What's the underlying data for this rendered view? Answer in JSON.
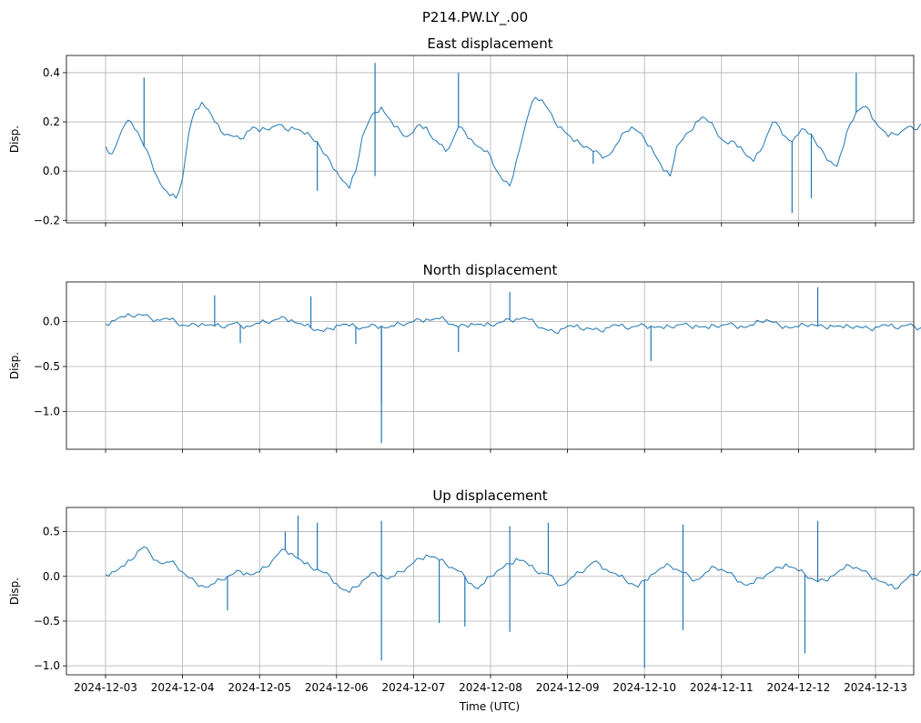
{
  "suptitle": "P214.PW.LY_.00",
  "xlabel": "Time (UTC)",
  "colors": {
    "line": "#1f77b4",
    "grid": "#b0b0b0",
    "axes": "#000000"
  },
  "chart_data": [
    {
      "type": "line",
      "title": "East displacement",
      "ylabel": "Disp.",
      "x_ticks": [
        "2024-12-03",
        "2024-12-04",
        "2024-12-05",
        "2024-12-06",
        "2024-12-07",
        "2024-12-08",
        "2024-12-09",
        "2024-12-10",
        "2024-12-11",
        "2024-12-12",
        "2024-12-13"
      ],
      "show_x_ticklabels": false,
      "x_range": [
        "2024-12-03T00:00",
        "2024-12-13T00:00"
      ],
      "ylim": [
        -0.21,
        0.47
      ],
      "y_ticks": [
        -0.2,
        0.0,
        0.2,
        0.4
      ],
      "y_ticklabels": [
        "−0.2",
        "0.0",
        "0.2",
        "0.4"
      ],
      "grid": true,
      "series": [
        {
          "x_start": "2024-12-03T00:00",
          "x_step_hours": 2,
          "values": [
            0.1,
            0.07,
            0.13,
            0.19,
            0.2,
            0.16,
            0.1,
            0.05,
            -0.02,
            -0.07,
            -0.1,
            -0.11,
            -0.03,
            0.16,
            0.25,
            0.28,
            0.25,
            0.2,
            0.16,
            0.15,
            0.14,
            0.13,
            0.16,
            0.18,
            0.16,
            0.17,
            0.18,
            0.19,
            0.17,
            0.18,
            0.17,
            0.15,
            0.14,
            0.12,
            0.07,
            0.04,
            0.0,
            -0.04,
            -0.07,
            0.0,
            0.14,
            0.2,
            0.24,
            0.26,
            0.22,
            0.18,
            0.16,
            0.14,
            0.16,
            0.19,
            0.18,
            0.13,
            0.11,
            0.08,
            0.12,
            0.18,
            0.16,
            0.13,
            0.1,
            0.08,
            0.06,
            0.0,
            -0.04,
            -0.06,
            0.04,
            0.14,
            0.24,
            0.3,
            0.29,
            0.25,
            0.2,
            0.18,
            0.15,
            0.12,
            0.11,
            0.1,
            0.08,
            0.07,
            0.06,
            0.08,
            0.12,
            0.16,
            0.18,
            0.16,
            0.13,
            0.1,
            0.05,
            0.0,
            -0.02,
            0.1,
            0.13,
            0.16,
            0.2,
            0.22,
            0.2,
            0.17,
            0.13,
            0.11,
            0.12,
            0.1,
            0.06,
            0.04,
            0.08,
            0.14,
            0.2,
            0.18,
            0.14,
            0.12,
            0.15,
            0.17,
            0.15,
            0.1,
            0.07,
            0.04,
            0.02,
            0.1,
            0.19,
            0.24,
            0.26,
            0.25,
            0.2,
            0.17,
            0.14,
            0.15,
            0.16,
            0.18,
            0.17,
            0.19,
            0.2,
            0.16,
            0.13,
            0.16,
            0.17,
            0.14,
            0.13,
            0.15,
            0.19,
            0.2,
            0.17,
            0.15,
            0.14,
            0.16,
            0.18,
            0.22,
            0.2,
            0.16,
            0.13,
            0.12,
            0.14,
            0.16,
            0.18,
            0.21,
            0.2,
            0.16,
            0.13,
            0.12,
            0.15,
            0.18,
            0.16,
            0.12,
            0.1,
            0.12,
            0.18,
            0.22,
            0.2,
            0.17,
            0.15,
            0.14,
            0.16,
            0.18,
            0.16,
            0.14,
            0.13,
            0.16,
            0.2,
            0.22,
            0.19,
            0.16,
            0.13,
            0.12,
            0.14,
            0.16,
            0.2,
            0.22,
            0.19,
            0.16,
            0.13,
            0.15,
            0.17,
            0.15,
            0.12,
            0.1,
            0.12,
            0.14,
            0.18,
            0.21,
            0.2,
            0.17,
            0.15,
            0.16,
            0.18,
            0.2,
            0.22,
            0.18,
            0.15,
            0.13,
            0.11,
            0.1,
            0.06,
            0.04,
            0.1,
            0.16,
            0.2,
            0.18,
            0.16,
            0.14,
            0.16,
            0.2,
            0.21,
            0.17,
            0.14,
            0.13,
            0.16,
            0.19,
            0.17,
            0.14,
            0.11,
            0.08,
            0.1,
            0.17,
            0.22,
            0.19,
            0.16,
            0.14,
            0.12,
            0.1,
            0.09,
            0.14,
            0.19,
            0.17,
            0.14,
            0.1,
            0.08,
            0.05,
            0.02,
            0.01,
            0.06,
            0.16,
            0.28,
            0.33,
            0.34,
            0.28,
            0.22,
            0.17,
            0.14,
            0.15,
            0.18,
            0.19,
            0.17,
            0.14,
            0.13,
            0.16,
            0.18,
            0.17
          ]
        }
      ],
      "spikes": [
        {
          "x": "2024-12-03T12:00",
          "value": 0.38
        },
        {
          "x": "2024-12-05T18:00",
          "value": -0.08
        },
        {
          "x": "2024-12-06T12:00",
          "value": 0.44
        },
        {
          "x": "2024-12-06T12:00",
          "value": -0.02
        },
        {
          "x": "2024-12-07T14:00",
          "value": 0.4
        },
        {
          "x": "2024-12-09T08:00",
          "value": 0.03
        },
        {
          "x": "2024-12-11T22:00",
          "value": -0.17
        },
        {
          "x": "2024-12-12T04:00",
          "value": -0.11
        },
        {
          "x": "2024-12-12T18:00",
          "value": 0.4
        }
      ]
    },
    {
      "type": "line",
      "title": "North displacement",
      "ylabel": "Disp.",
      "x_ticks": [
        "2024-12-03",
        "2024-12-04",
        "2024-12-05",
        "2024-12-06",
        "2024-12-07",
        "2024-12-08",
        "2024-12-09",
        "2024-12-10",
        "2024-12-11",
        "2024-12-12",
        "2024-12-13"
      ],
      "show_x_ticklabels": false,
      "x_range": [
        "2024-12-03T00:00",
        "2024-12-13T00:00"
      ],
      "ylim": [
        -1.42,
        0.44
      ],
      "y_ticks": [
        -1.0,
        -0.5,
        0.0
      ],
      "y_ticklabels": [
        "−1.0",
        "−0.5",
        "0.0"
      ],
      "grid": true,
      "series": [
        {
          "x_start": "2024-12-03T00:00",
          "x_step_hours": 2,
          "values": [
            -0.03,
            0.01,
            0.04,
            0.05,
            0.06,
            0.08,
            0.07,
            0.04,
            0.02,
            0.03,
            0.02,
            -0.01,
            -0.04,
            -0.05,
            -0.03,
            -0.02,
            -0.04,
            -0.05,
            -0.06,
            -0.04,
            -0.02,
            -0.04,
            -0.05,
            -0.04,
            -0.02,
            -0.01,
            0.01,
            0.03,
            0.04,
            0.02,
            -0.02,
            -0.05,
            -0.07,
            -0.09,
            -0.11,
            -0.08,
            -0.04,
            -0.03,
            -0.05,
            -0.06,
            -0.07,
            -0.06,
            -0.04,
            -0.05,
            -0.07,
            -0.05,
            -0.03,
            -0.02,
            0.0,
            0.02,
            0.03,
            0.02,
            0.03,
            0.01,
            -0.03,
            -0.06,
            -0.04,
            -0.02,
            -0.03,
            -0.05,
            -0.04,
            -0.02,
            0.0,
            0.02,
            0.03,
            0.04,
            0.02,
            -0.03,
            -0.07,
            -0.1,
            -0.12,
            -0.08,
            -0.05,
            -0.06,
            -0.08,
            -0.07,
            -0.09,
            -0.1,
            -0.07,
            -0.04,
            -0.05,
            -0.07,
            -0.06,
            -0.05,
            -0.04,
            -0.05,
            -0.06,
            -0.08,
            -0.06,
            -0.04,
            -0.03,
            -0.05,
            -0.04,
            -0.06,
            -0.08,
            -0.05,
            -0.04,
            -0.03,
            -0.04,
            -0.05,
            -0.06,
            -0.04,
            0.0,
            0.02,
            -0.01,
            -0.04,
            -0.05,
            -0.07,
            -0.06,
            -0.04,
            -0.03,
            -0.05,
            -0.06,
            -0.04,
            -0.05,
            -0.07,
            -0.06,
            -0.05,
            -0.07,
            -0.08,
            -0.06,
            -0.04,
            -0.05,
            -0.07,
            -0.05,
            -0.04,
            -0.05,
            -0.07,
            -0.08,
            -0.05,
            -0.03,
            -0.05,
            -0.06,
            -0.04,
            -0.06,
            -0.07,
            -0.05,
            -0.02,
            -0.04,
            -0.05,
            -0.03,
            -0.04,
            -0.06,
            -0.05,
            -0.04,
            -0.05,
            -0.07,
            -0.06,
            -0.03,
            0.02,
            0.05,
            0.02,
            -0.04,
            -0.06,
            -0.05,
            -0.04,
            -0.06,
            -0.08,
            -0.06,
            -0.04,
            -0.05,
            -0.06,
            -0.04,
            -0.05,
            -0.06,
            -0.04,
            -0.05,
            -0.07,
            -0.06,
            -0.05,
            -0.04,
            -0.06,
            -0.07,
            -0.05,
            -0.03,
            -0.04,
            -0.05,
            -0.04,
            -0.03,
            -0.02,
            -0.04,
            -0.05,
            -0.04,
            -0.03,
            -0.04,
            -0.06,
            -0.05,
            -0.04,
            -0.01,
            0.02,
            0.04,
            0.01,
            -0.02,
            -0.04,
            -0.05,
            -0.06,
            -0.04,
            -0.03,
            -0.04,
            -0.05,
            -0.03,
            -0.02,
            -0.01,
            0.01,
            0.03,
            0.04,
            0.02,
            0.03,
            -0.01,
            -0.04,
            -0.05,
            -0.07,
            -0.08,
            -0.07,
            -0.06,
            -0.07,
            -0.08,
            -0.06,
            -0.05,
            -0.06,
            -0.07,
            -0.05,
            -0.03,
            -0.01,
            0.01,
            0.04,
            0.06,
            0.04,
            0.02,
            -0.01,
            -0.03,
            -0.05,
            -0.06,
            -0.08,
            -0.1,
            -0.12,
            -0.09,
            -0.07,
            -0.06,
            -0.04,
            -0.03,
            -0.05,
            -0.04,
            -0.02,
            -0.03,
            -0.04,
            -0.02,
            -0.01,
            -0.03,
            -0.02
          ]
        }
      ],
      "spikes": [
        {
          "x": "2024-12-04T10:00",
          "value": 0.29
        },
        {
          "x": "2024-12-04T18:00",
          "value": -0.24
        },
        {
          "x": "2024-12-05T16:00",
          "value": 0.28
        },
        {
          "x": "2024-12-06T06:00",
          "value": -0.25
        },
        {
          "x": "2024-12-06T14:00",
          "value": -1.35
        },
        {
          "x": "2024-12-06T14:00",
          "value": -0.9
        },
        {
          "x": "2024-12-07T14:00",
          "value": -0.34
        },
        {
          "x": "2024-12-08T06:00",
          "value": 0.33
        },
        {
          "x": "2024-12-10T02:00",
          "value": -0.44
        },
        {
          "x": "2024-12-12T06:00",
          "value": 0.38
        }
      ]
    },
    {
      "type": "line",
      "title": "Up displacement",
      "ylabel": "Disp.",
      "xlabel": "Time (UTC)",
      "x_ticks": [
        "2024-12-03",
        "2024-12-04",
        "2024-12-05",
        "2024-12-06",
        "2024-12-07",
        "2024-12-08",
        "2024-12-09",
        "2024-12-10",
        "2024-12-11",
        "2024-12-12",
        "2024-12-13"
      ],
      "show_x_ticklabels": true,
      "x_range": [
        "2024-12-03T00:00",
        "2024-12-13T00:00"
      ],
      "ylim": [
        -1.1,
        0.77
      ],
      "y_ticks": [
        -1.0,
        -0.5,
        0.0,
        0.5
      ],
      "y_ticklabels": [
        "−1.0",
        "−0.5",
        "0.0",
        "0.5"
      ],
      "grid": true,
      "series": [
        {
          "x_start": "2024-12-03T00:00",
          "x_step_hours": 2,
          "values": [
            0.02,
            0.05,
            0.08,
            0.12,
            0.18,
            0.28,
            0.33,
            0.25,
            0.18,
            0.14,
            0.16,
            0.12,
            0.05,
            -0.02,
            -0.06,
            -0.1,
            -0.12,
            -0.08,
            -0.04,
            0.0,
            0.03,
            0.06,
            0.04,
            0.02,
            0.05,
            0.1,
            0.18,
            0.26,
            0.3,
            0.26,
            0.2,
            0.14,
            0.1,
            0.08,
            0.04,
            0.0,
            -0.08,
            -0.15,
            -0.18,
            -0.12,
            -0.05,
            0.0,
            0.04,
            0.02,
            -0.03,
            0.0,
            0.05,
            0.1,
            0.15,
            0.2,
            0.24,
            0.22,
            0.18,
            0.14,
            0.1,
            0.06,
            0.0,
            -0.08,
            -0.14,
            -0.08,
            0.0,
            0.06,
            0.1,
            0.14,
            0.2,
            0.18,
            0.12,
            0.06,
            0.04,
            0.02,
            -0.04,
            -0.1,
            -0.06,
            0.0,
            0.04,
            0.1,
            0.16,
            0.14,
            0.08,
            0.04,
            0.0,
            -0.04,
            -0.08,
            -0.12,
            -0.04,
            0.02,
            0.06,
            0.1,
            0.12,
            0.08,
            0.04,
            0.0,
            -0.04,
            0.0,
            0.06,
            0.1,
            0.08,
            0.04,
            0.0,
            -0.06,
            -0.1,
            -0.08,
            -0.02,
            0.02,
            0.06,
            0.1,
            0.14,
            0.1,
            0.06,
            0.02,
            -0.02,
            -0.06,
            -0.04,
            0.0,
            0.04,
            0.08,
            0.12,
            0.1,
            0.06,
            0.02,
            -0.02,
            -0.06,
            -0.1,
            -0.14,
            -0.08,
            -0.02,
            0.02,
            0.06,
            0.1,
            0.12,
            0.08,
            0.04,
            0.02,
            0.04,
            0.08,
            0.1,
            0.06,
            0.02,
            -0.02,
            -0.06,
            -0.1,
            -0.14,
            -0.16,
            -0.1,
            -0.04,
            0.02,
            0.06,
            0.1,
            0.08,
            0.04,
            0.0,
            -0.04,
            -0.02,
            0.02,
            0.06,
            0.04,
            0.0,
            -0.04,
            -0.08,
            -0.14,
            -0.18,
            -0.12,
            -0.06,
            -0.02,
            0.02,
            0.06,
            0.04,
            0.0,
            -0.04,
            -0.02,
            0.02,
            0.04,
            0.0,
            -0.04,
            -0.08,
            -0.04,
            0.0,
            0.04,
            0.08,
            0.14,
            0.18,
            0.16,
            0.1,
            0.06,
            0.02,
            0.0,
            -0.04,
            -0.08,
            -0.06,
            -0.02,
            0.02,
            0.06,
            0.1,
            0.14,
            0.12,
            0.08,
            0.04,
            0.0,
            -0.04,
            -0.08,
            -0.12,
            -0.08,
            -0.04,
            0.0,
            0.04,
            0.06,
            0.04,
            0.0,
            -0.04,
            -0.08,
            -0.12,
            -0.06,
            0.0,
            0.04,
            0.1,
            0.16,
            0.22,
            0.28,
            0.2,
            0.12,
            0.06,
            0.02,
            -0.02,
            -0.06,
            -0.1,
            -0.06,
            -0.02,
            0.02,
            0.06,
            0.04,
            0.0,
            -0.04,
            -0.1,
            -0.16,
            -0.2,
            -0.14,
            -0.08,
            -0.04,
            0.0,
            0.02,
            0.04,
            0.06,
            0.02,
            -0.02,
            0.0,
            0.04,
            0.02
          ]
        }
      ],
      "spikes": [
        {
          "x": "2024-12-04T14:00",
          "value": -0.38
        },
        {
          "x": "2024-12-05T08:00",
          "value": 0.5
        },
        {
          "x": "2024-12-05T12:00",
          "value": 0.68
        },
        {
          "x": "2024-12-05T18:00",
          "value": 0.6
        },
        {
          "x": "2024-12-06T14:00",
          "value": -0.94
        },
        {
          "x": "2024-12-06T14:00",
          "value": 0.62
        },
        {
          "x": "2024-12-07T08:00",
          "value": -0.52
        },
        {
          "x": "2024-12-07T16:00",
          "value": -0.56
        },
        {
          "x": "2024-12-08T06:00",
          "value": 0.56
        },
        {
          "x": "2024-12-08T06:00",
          "value": -0.62
        },
        {
          "x": "2024-12-08T18:00",
          "value": 0.6
        },
        {
          "x": "2024-12-10T00:00",
          "value": -1.02
        },
        {
          "x": "2024-12-10T12:00",
          "value": 0.58
        },
        {
          "x": "2024-12-10T12:00",
          "value": -0.6
        },
        {
          "x": "2024-12-12T02:00",
          "value": -0.86
        },
        {
          "x": "2024-12-12T06:00",
          "value": 0.62
        }
      ]
    }
  ]
}
